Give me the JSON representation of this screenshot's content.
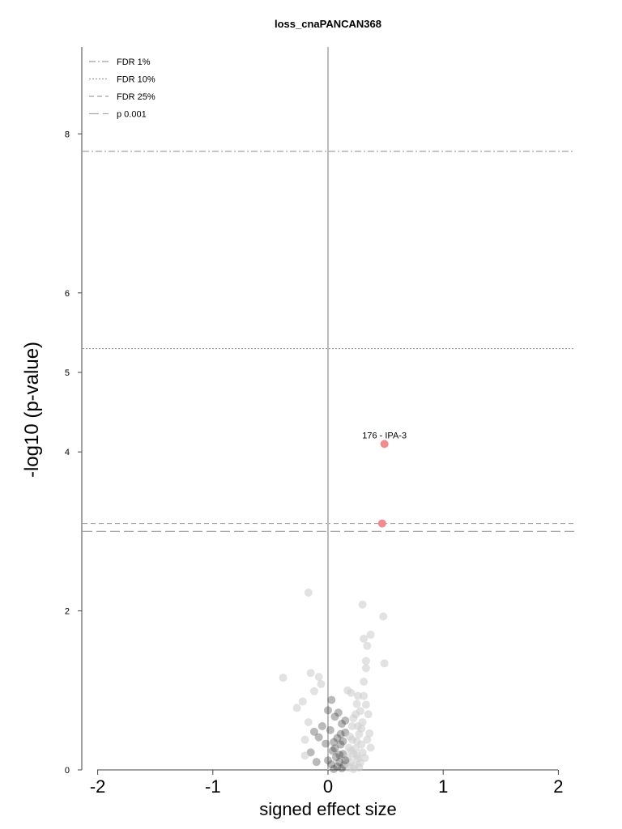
{
  "chart_data": {
    "type": "scatter",
    "title": "loss_cnaPANCAN368",
    "xlabel": "signed effect size",
    "ylabel": "-log10 (p-value)",
    "xlim": [
      -2,
      2
    ],
    "ylim": [
      0,
      9
    ],
    "xticks": [
      -2,
      -1,
      0,
      1,
      2
    ],
    "xtick_labels": [
      "-2",
      "-1",
      "0",
      "1",
      "2"
    ],
    "yticks": [
      0,
      2,
      4,
      5,
      6,
      8
    ],
    "ytick_labels": [
      "0",
      "2",
      "4",
      "5",
      "6",
      "8"
    ],
    "grid": false,
    "legend_position": "top-left",
    "vertical_line_x": 0,
    "thresholds": [
      {
        "name": "FDR 1%",
        "y": 7.78,
        "style": "dashdot"
      },
      {
        "name": "FDR 10%",
        "y": 5.3,
        "style": "dotted"
      },
      {
        "name": "FDR 25%",
        "y": 3.1,
        "style": "dashed"
      },
      {
        "name": "p 0.001",
        "y": 3.0,
        "style": "longdash"
      }
    ],
    "significant_points": [
      {
        "x": 0.49,
        "y": 4.1,
        "label": "176 - IPA-3",
        "color": "#f28b8f"
      },
      {
        "x": 0.47,
        "y": 3.1,
        "label": "",
        "color": "#f28b8f"
      }
    ],
    "nonsig_points": [
      [
        -0.17,
        2.23
      ],
      [
        0.3,
        2.08
      ],
      [
        0.48,
        1.93
      ],
      [
        0.37,
        1.7
      ],
      [
        0.31,
        1.65
      ],
      [
        0.34,
        1.56
      ],
      [
        0.49,
        1.34
      ],
      [
        0.33,
        1.37
      ],
      [
        0.33,
        1.28
      ],
      [
        -0.15,
        1.22
      ],
      [
        -0.08,
        1.17
      ],
      [
        -0.39,
        1.16
      ],
      [
        -0.06,
        1.08
      ],
      [
        0.31,
        1.11
      ],
      [
        -0.12,
        0.99
      ],
      [
        0.17,
        1.0
      ],
      [
        0.2,
        0.97
      ],
      [
        0.26,
        0.93
      ],
      [
        0.31,
        0.93
      ],
      [
        -0.22,
        0.86
      ],
      [
        0.03,
        0.88
      ],
      [
        -0.27,
        0.78
      ],
      [
        0.0,
        0.75
      ],
      [
        0.25,
        0.83
      ],
      [
        0.33,
        0.82
      ],
      [
        0.28,
        0.74
      ],
      [
        -0.17,
        0.6
      ],
      [
        0.06,
        0.67
      ],
      [
        0.35,
        0.7
      ],
      [
        0.22,
        0.65
      ],
      [
        0.12,
        0.58
      ],
      [
        -0.05,
        0.55
      ],
      [
        0.26,
        0.55
      ],
      [
        0.3,
        0.6
      ],
      [
        -0.12,
        0.48
      ],
      [
        0.02,
        0.5
      ],
      [
        0.15,
        0.47
      ],
      [
        0.27,
        0.45
      ],
      [
        0.36,
        0.46
      ],
      [
        -0.2,
        0.38
      ],
      [
        0.08,
        0.4
      ],
      [
        0.21,
        0.38
      ],
      [
        -0.02,
        0.33
      ],
      [
        0.11,
        0.32
      ],
      [
        0.29,
        0.32
      ],
      [
        0.18,
        0.28
      ],
      [
        0.24,
        0.27
      ],
      [
        -0.15,
        0.22
      ],
      [
        0.04,
        0.24
      ],
      [
        0.13,
        0.2
      ],
      [
        0.22,
        0.2
      ],
      [
        0.3,
        0.22
      ],
      [
        0.07,
        0.16
      ],
      [
        0.17,
        0.15
      ],
      [
        0.26,
        0.14
      ],
      [
        -0.2,
        0.18
      ],
      [
        0.0,
        0.12
      ],
      [
        0.1,
        0.1
      ],
      [
        0.2,
        0.1
      ],
      [
        0.28,
        0.09
      ],
      [
        0.03,
        0.07
      ],
      [
        0.14,
        0.06
      ],
      [
        0.23,
        0.05
      ],
      [
        0.08,
        0.04
      ],
      [
        0.18,
        0.03
      ],
      [
        0.27,
        0.03
      ],
      [
        0.12,
        0.02
      ],
      [
        0.22,
        0.01
      ],
      [
        0.05,
        0.01
      ],
      [
        0.16,
        0.08
      ],
      [
        0.19,
        0.42
      ],
      [
        0.09,
        0.72
      ],
      [
        -0.08,
        0.41
      ],
      [
        0.34,
        0.38
      ],
      [
        0.15,
        0.62
      ],
      [
        0.24,
        0.7
      ],
      [
        0.29,
        0.52
      ],
      [
        0.11,
        0.45
      ],
      [
        0.21,
        0.55
      ],
      [
        0.05,
        0.35
      ],
      [
        0.25,
        0.36
      ],
      [
        0.32,
        0.15
      ],
      [
        -0.1,
        0.1
      ],
      [
        0.37,
        0.28
      ],
      [
        0.13,
        0.36
      ],
      [
        0.2,
        0.24
      ],
      [
        0.06,
        0.27
      ],
      [
        0.15,
        0.12
      ],
      [
        0.25,
        0.18
      ],
      [
        0.1,
        0.19
      ]
    ]
  }
}
